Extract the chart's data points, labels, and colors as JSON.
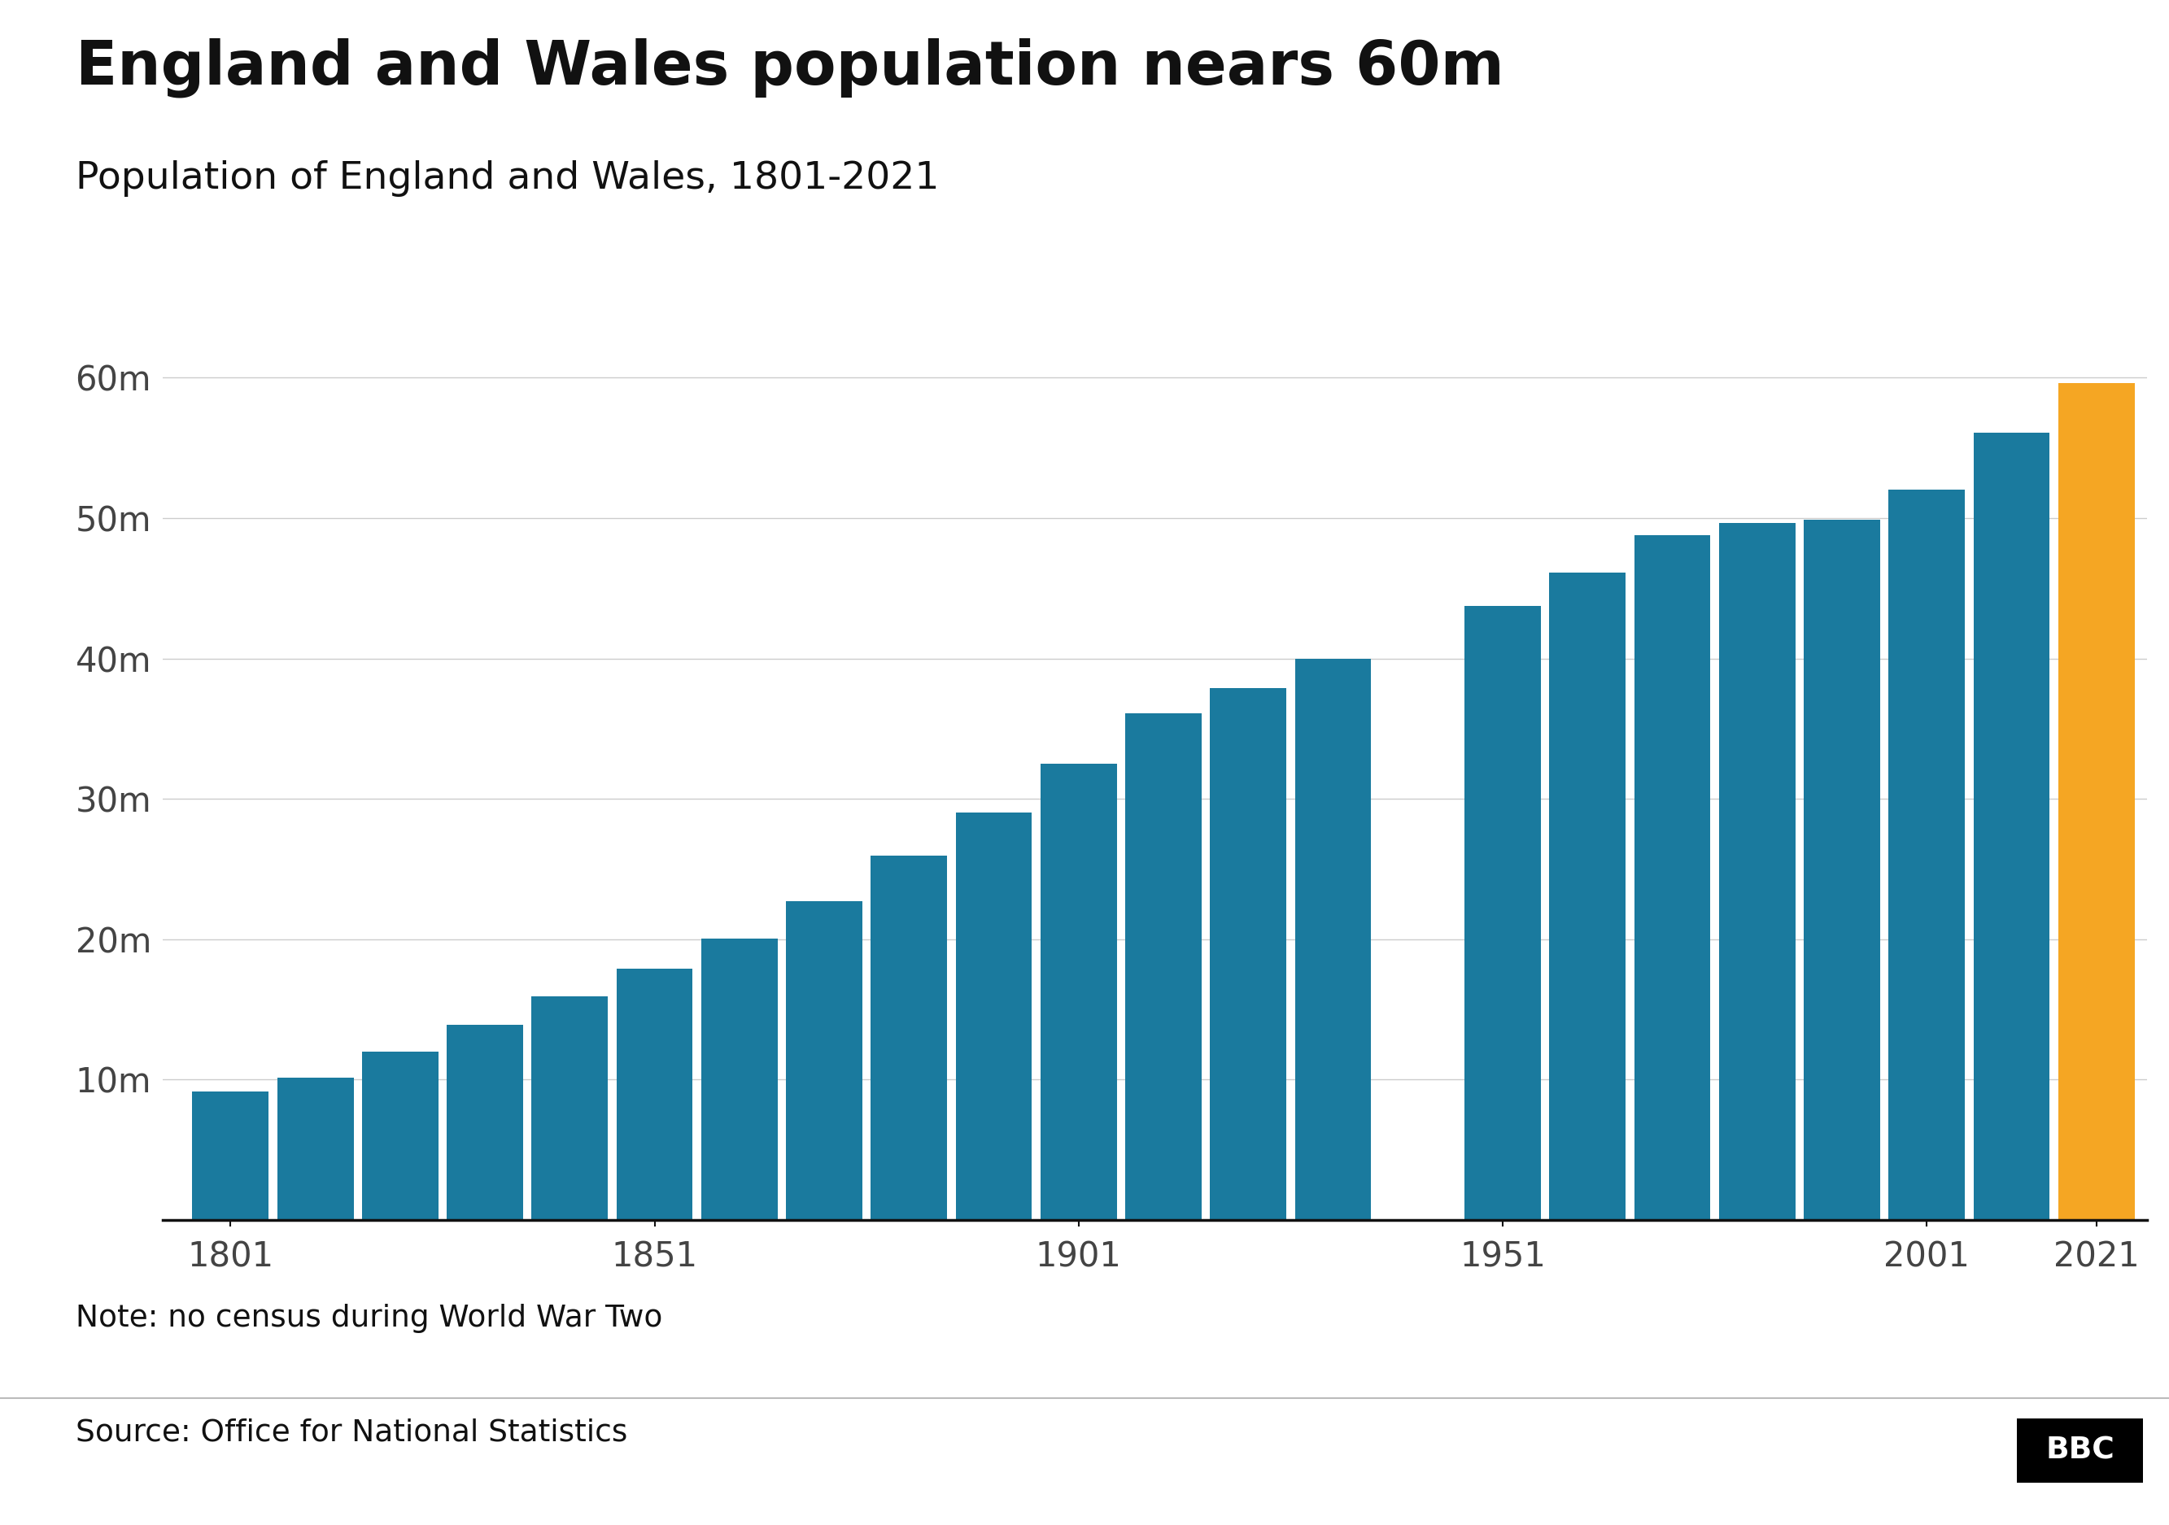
{
  "title": "England and Wales population nears 60m",
  "subtitle": "Population of England and Wales, 1801-2021",
  "note": "Note: no census during World War Two",
  "source": "Source: Office for National Statistics",
  "years": [
    1801,
    1811,
    1821,
    1831,
    1841,
    1851,
    1861,
    1871,
    1881,
    1891,
    1901,
    1911,
    1921,
    1931,
    1951,
    1961,
    1971,
    1981,
    1991,
    2001,
    2011,
    2021
  ],
  "population": [
    9.168,
    10.164,
    12.0,
    13.897,
    15.914,
    17.928,
    20.066,
    22.712,
    25.974,
    29.003,
    32.528,
    36.07,
    37.887,
    39.952,
    43.758,
    46.105,
    48.75,
    49.634,
    49.89,
    52.042,
    56.075,
    59.597
  ],
  "bar_colors": [
    "#1a7a9e",
    "#1a7a9e",
    "#1a7a9e",
    "#1a7a9e",
    "#1a7a9e",
    "#1a7a9e",
    "#1a7a9e",
    "#1a7a9e",
    "#1a7a9e",
    "#1a7a9e",
    "#1a7a9e",
    "#1a7a9e",
    "#1a7a9e",
    "#1a7a9e",
    "#1a7a9e",
    "#1a7a9e",
    "#1a7a9e",
    "#1a7a9e",
    "#1a7a9e",
    "#1a7a9e",
    "#1a7a9e",
    "#f5a623"
  ],
  "yticks": [
    0,
    10,
    20,
    30,
    40,
    50,
    60
  ],
  "ytick_labels": [
    "",
    "10m",
    "20m",
    "30m",
    "40m",
    "50m",
    "60m"
  ],
  "xtick_years": [
    1801,
    1851,
    1901,
    1951,
    2001,
    2021
  ],
  "xlim_left": 1793,
  "xlim_right": 2027,
  "ylim": [
    0,
    63
  ],
  "background_color": "#ffffff",
  "title_fontsize": 54,
  "subtitle_fontsize": 34,
  "tick_fontsize": 30,
  "note_fontsize": 27,
  "source_fontsize": 27,
  "bar_color_teal": "#1a7a9e",
  "bar_color_orange": "#f5a623",
  "grid_color": "#cccccc",
  "axis_color": "#444444",
  "text_color": "#111111"
}
